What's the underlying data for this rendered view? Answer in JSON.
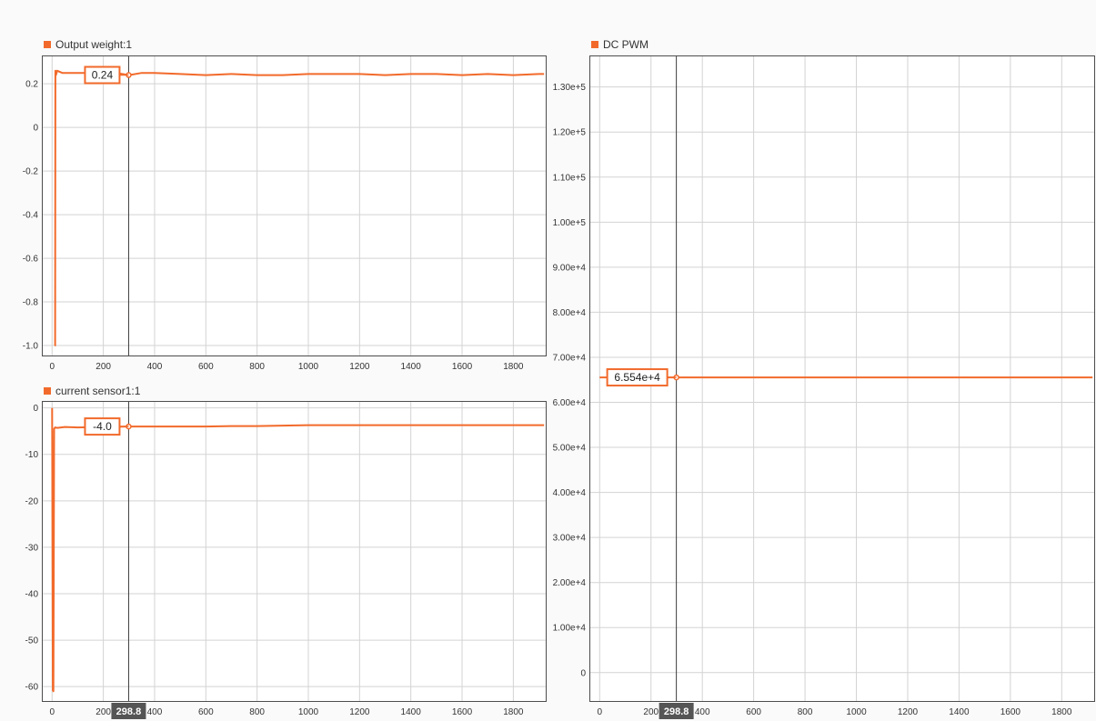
{
  "colors": {
    "series": "#f26a2b",
    "grid": "#d3d3d3",
    "cursor": "#3c3c3c",
    "axis": "#4d4d4d",
    "cursor_badge_bg": "#555555"
  },
  "cursor": {
    "x": 298.8,
    "label": "298.8"
  },
  "chart_data": [
    {
      "type": "line",
      "legend": "Output weight:1",
      "xlim": [
        -40,
        1930
      ],
      "ylim": [
        -1.05,
        0.33
      ],
      "x_ticks": [
        0,
        200,
        400,
        600,
        800,
        1000,
        1200,
        1400,
        1600,
        1800
      ],
      "x_tick_labels": [
        "0",
        "200",
        "400",
        "600",
        "800",
        "1000",
        "1200",
        "1400",
        "1600",
        "1800"
      ],
      "y_ticks": [
        0.2,
        0,
        -0.2,
        -0.4,
        -0.6,
        -0.8,
        -1.0
      ],
      "y_tick_labels": [
        "0.2",
        "0",
        "-0.2",
        "-0.4",
        "-0.6",
        "-0.8",
        "-1.0"
      ],
      "grid": true,
      "series": [
        {
          "x": [
            10,
            12,
            13,
            15,
            20,
            40,
            80,
            150,
            250,
            300,
            350,
            400,
            500,
            600,
            700,
            800,
            900,
            1000,
            1100,
            1200,
            1300,
            1400,
            1500,
            1600,
            1700,
            1800,
            1900,
            1920
          ],
          "y": [
            -1.0,
            -1.0,
            0.26,
            0.24,
            0.26,
            0.25,
            0.25,
            0.25,
            0.25,
            0.24,
            0.25,
            0.25,
            0.245,
            0.24,
            0.245,
            0.24,
            0.24,
            0.245,
            0.245,
            0.245,
            0.24,
            0.245,
            0.245,
            0.24,
            0.245,
            0.24,
            0.245,
            0.245
          ]
        }
      ],
      "cursor_value": "0.24"
    },
    {
      "type": "line",
      "legend": "current sensor1:1",
      "xlim": [
        -40,
        1930
      ],
      "ylim": [
        -63.3,
        1.5
      ],
      "x_ticks": [
        0,
        200,
        400,
        600,
        800,
        1000,
        1200,
        1400,
        1600,
        1800
      ],
      "x_tick_labels": [
        "0",
        "200",
        "400",
        "600",
        "800",
        "1000",
        "1200",
        "1400",
        "1600",
        "1800"
      ],
      "y_ticks": [
        0,
        -10,
        -20,
        -30,
        -40,
        -50,
        -60
      ],
      "y_tick_labels": [
        "0",
        "-10",
        "-20",
        "-30",
        "-40",
        "-50",
        "-60"
      ],
      "grid": true,
      "series": [
        {
          "x": [
            0,
            3,
            5,
            8,
            12,
            20,
            50,
            100,
            200,
            300,
            400,
            500,
            600,
            700,
            800,
            900,
            1000,
            1100,
            1200,
            1400,
            1600,
            1800,
            1920
          ],
          "y": [
            0,
            -60.8,
            -61.0,
            -4.5,
            -4.2,
            -4.3,
            -4.1,
            -4.2,
            -4.1,
            -4.0,
            -4.0,
            -4.0,
            -4.0,
            -3.9,
            -3.9,
            -3.8,
            -3.7,
            -3.7,
            -3.7,
            -3.7,
            -3.7,
            -3.7,
            -3.7
          ]
        }
      ],
      "cursor_value": "-4.0"
    },
    {
      "type": "line",
      "legend": "DC PWM",
      "xlim": [
        -40,
        1930
      ],
      "ylim": [
        -6500,
        137000
      ],
      "x_ticks": [
        0,
        200,
        400,
        600,
        800,
        1000,
        1200,
        1400,
        1600,
        1800
      ],
      "x_tick_labels": [
        "0",
        "200",
        "400",
        "600",
        "800",
        "1000",
        "1200",
        "1400",
        "1600",
        "1800"
      ],
      "y_ticks": [
        130000,
        120000,
        110000,
        100000,
        90000,
        80000,
        70000,
        60000,
        50000,
        40000,
        30000,
        20000,
        10000,
        0
      ],
      "y_tick_labels": [
        "1.30e+5",
        "1.20e+5",
        "1.10e+5",
        "1.00e+5",
        "9.00e+4",
        "8.00e+4",
        "7.00e+4",
        "6.00e+4",
        "5.00e+4",
        "4.00e+4",
        "3.00e+4",
        "2.00e+4",
        "1.00e+4",
        "0"
      ],
      "grid": true,
      "series": [
        {
          "x": [
            0,
            1920
          ],
          "y": [
            65540,
            65540
          ]
        }
      ],
      "cursor_value": "6.554e+4"
    }
  ]
}
